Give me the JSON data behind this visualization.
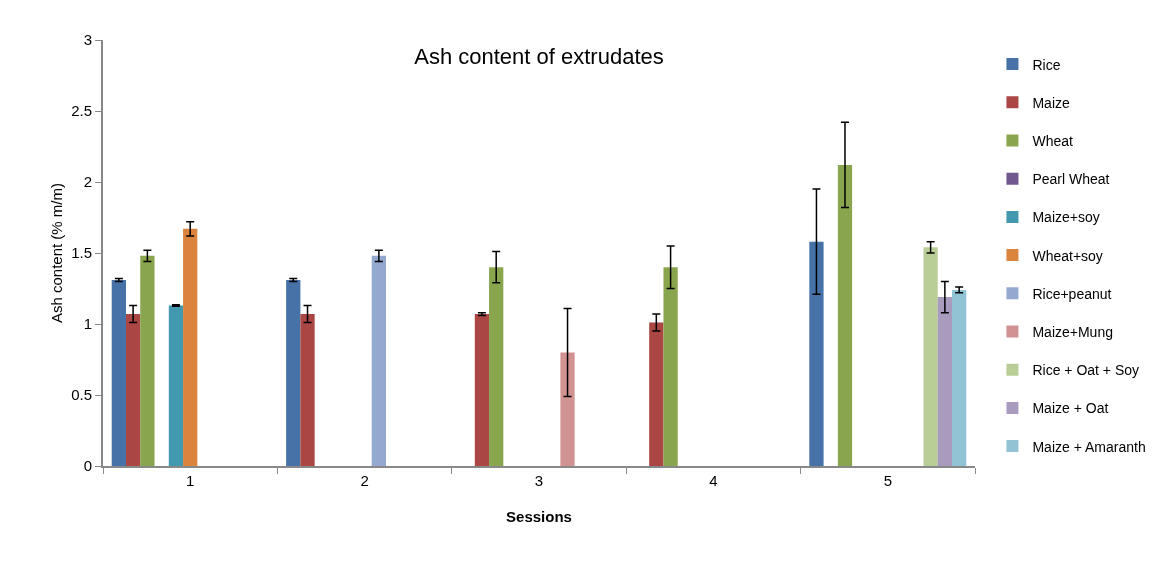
{
  "chart_data": {
    "type": "bar",
    "title": "Ash content of extrudates",
    "xlabel": "Sessions",
    "ylabel": "Ash content (% m/m)",
    "categories": [
      "1",
      "2",
      "3",
      "4",
      "5"
    ],
    "series": [
      {
        "name": "Rice",
        "color": "#4672a8",
        "values": [
          1.31,
          1.31,
          null,
          null,
          1.58
        ],
        "errors": [
          0.01,
          0.01,
          null,
          null,
          0.37
        ]
      },
      {
        "name": "Maize",
        "color": "#aa4644",
        "values": [
          1.07,
          1.07,
          1.07,
          1.01,
          null
        ],
        "errors": [
          0.06,
          0.06,
          0.01,
          0.06,
          null
        ]
      },
      {
        "name": "Wheat",
        "color": "#89a54e",
        "values": [
          1.48,
          null,
          1.4,
          1.4,
          2.12
        ],
        "errors": [
          0.04,
          null,
          0.11,
          0.15,
          0.3
        ]
      },
      {
        "name": "Pearl Wheat",
        "color": "#71588f",
        "values": [
          null,
          null,
          null,
          null,
          null
        ]
      },
      {
        "name": "Maize+soy",
        "color": "#4198af",
        "values": [
          1.13,
          null,
          null,
          null,
          null
        ],
        "errors": [
          0.005,
          null,
          null,
          null,
          null
        ]
      },
      {
        "name": "Wheat+soy",
        "color": "#db843d",
        "values": [
          1.67,
          null,
          null,
          null,
          null
        ],
        "errors": [
          0.05,
          null,
          null,
          null,
          null
        ]
      },
      {
        "name": "Rice+peanut",
        "color": "#93a9cf",
        "values": [
          null,
          1.48,
          null,
          null,
          null
        ],
        "errors": [
          null,
          0.04,
          null,
          null,
          null
        ]
      },
      {
        "name": "Maize+Mung",
        "color": "#d19392",
        "values": [
          null,
          null,
          0.8,
          null,
          null
        ],
        "errors": [
          null,
          null,
          0.31,
          null,
          null
        ]
      },
      {
        "name": "Rice + Oat + Soy",
        "color": "#b9cd96",
        "values": [
          null,
          null,
          null,
          null,
          1.54
        ],
        "errors": [
          null,
          null,
          null,
          null,
          0.04
        ]
      },
      {
        "name": "Maize + Oat",
        "color": "#a99bbd",
        "values": [
          null,
          null,
          null,
          null,
          1.19
        ],
        "errors": [
          null,
          null,
          null,
          null,
          0.11
        ]
      },
      {
        "name": "Maize + Amaranth",
        "color": "#91c3d5",
        "values": [
          null,
          null,
          null,
          null,
          1.24
        ],
        "errors": [
          null,
          null,
          null,
          null,
          0.02
        ]
      }
    ],
    "ylim": [
      0,
      3
    ],
    "yticks": [
      0,
      0.5,
      1,
      1.5,
      2,
      2.5,
      3
    ],
    "grid": false,
    "legend": "right"
  }
}
